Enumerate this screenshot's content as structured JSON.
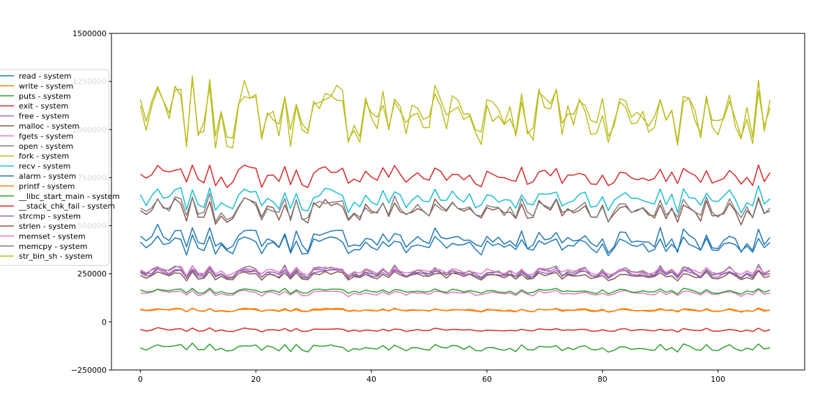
{
  "chart_data": {
    "type": "line",
    "title": "",
    "xlabel": "",
    "ylabel": "",
    "xlim": [
      -5,
      115
    ],
    "ylim": [
      -250000,
      1500000
    ],
    "x_ticks": [
      0,
      20,
      40,
      60,
      80,
      100
    ],
    "x_tick_labels": [
      "0",
      "20",
      "40",
      "60",
      "80",
      "100"
    ],
    "y_ticks": [
      -250000,
      0,
      250000,
      500000,
      750000,
      1000000,
      1250000,
      1500000
    ],
    "y_tick_labels": [
      "−250000",
      "0",
      "250000",
      "500000",
      "750000",
      "1000000",
      "1250000",
      "1500000"
    ],
    "grid": false,
    "legend_position": "left, outside plot",
    "n_points": 110,
    "series": [
      {
        "name": "read - system",
        "color": "#1f77b4",
        "base": 430000,
        "amp": 80000
      },
      {
        "name": "write - system",
        "color": "#ff7f0e",
        "base": 62000,
        "amp": 12000
      },
      {
        "name": "puts - system",
        "color": "#2ca02c",
        "base": -135000,
        "amp": 25000
      },
      {
        "name": "exit - system",
        "color": "#d62728",
        "base": -42000,
        "amp": 12000
      },
      {
        "name": "free - system",
        "color": "#9467bd",
        "base": 250000,
        "amp": 30000
      },
      {
        "name": "malloc - system",
        "color": "#8c564b",
        "base": 240000,
        "amp": 30000
      },
      {
        "name": "fgets - system",
        "color": "#e377c2",
        "base": 150000,
        "amp": 20000
      },
      {
        "name": "open - system",
        "color": "#7f7f7f",
        "base": 260000,
        "amp": 45000
      },
      {
        "name": "fork - system",
        "color": "#bcbd22",
        "base": 1080000,
        "amp": 200000
      },
      {
        "name": "recv - system",
        "color": "#17becf",
        "base": 640000,
        "amp": 80000
      },
      {
        "name": "alarm - system",
        "color": "#1f77b4",
        "base": 400000,
        "amp": 60000
      },
      {
        "name": "printf - system",
        "color": "#ff7f0e",
        "base": 60000,
        "amp": 10000
      },
      {
        "name": "__libc_start_main - system",
        "color": "#2ca02c",
        "base": 160000,
        "amp": 18000
      },
      {
        "name": "__stack_chk_fail - system",
        "color": "#d62728",
        "base": 760000,
        "amp": 70000
      },
      {
        "name": "strcmp - system",
        "color": "#9467bd",
        "base": 255000,
        "amp": 30000
      },
      {
        "name": "strlen - system",
        "color": "#8c564b",
        "base": 580000,
        "amp": 80000
      },
      {
        "name": "memset - system",
        "color": "#e377c2",
        "base": 265000,
        "amp": 30000
      },
      {
        "name": "memcpy - system",
        "color": "#7f7f7f",
        "base": 590000,
        "amp": 80000
      },
      {
        "name": "str_bin_sh - system",
        "color": "#bcbd22",
        "base": 1090000,
        "amp": 190000
      }
    ]
  }
}
